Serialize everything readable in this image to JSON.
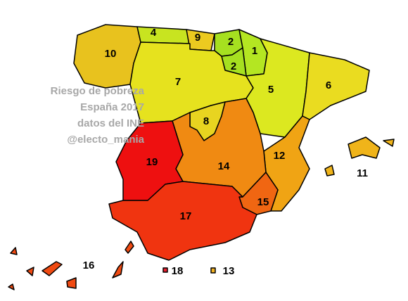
{
  "title_lines": [
    "Riesgo de pobreza",
    "España 2017",
    "datos del INE",
    "@electo_mania"
  ],
  "regions": [
    {
      "label": 10,
      "color": "#e8c21e"
    },
    {
      "label": 4,
      "color": "#c8e420"
    },
    {
      "label": 9,
      "color": "#ecca20"
    },
    {
      "label": 2,
      "color": "#a6e020"
    },
    {
      "label": 1,
      "color": "#b4e622"
    },
    {
      "label": 2,
      "color": "#a6e020"
    },
    {
      "label": 7,
      "color": "#e6e21e"
    },
    {
      "label": 5,
      "color": "#dce820"
    },
    {
      "label": 6,
      "color": "#eadc20"
    },
    {
      "label": 8,
      "color": "#e8d420"
    },
    {
      "label": 12,
      "color": "#f0a414"
    },
    {
      "label": 14,
      "color": "#f08a12"
    },
    {
      "label": 19,
      "color": "#ee1010"
    },
    {
      "label": 15,
      "color": "#f06612"
    },
    {
      "label": 17,
      "color": "#f03410"
    },
    {
      "label": 16,
      "color": "#f04a12"
    },
    {
      "label": 11,
      "color": "#f0b41a"
    },
    {
      "label": 13,
      "color": "#f0b020"
    },
    {
      "label": 18,
      "color": "#e82030"
    }
  ]
}
